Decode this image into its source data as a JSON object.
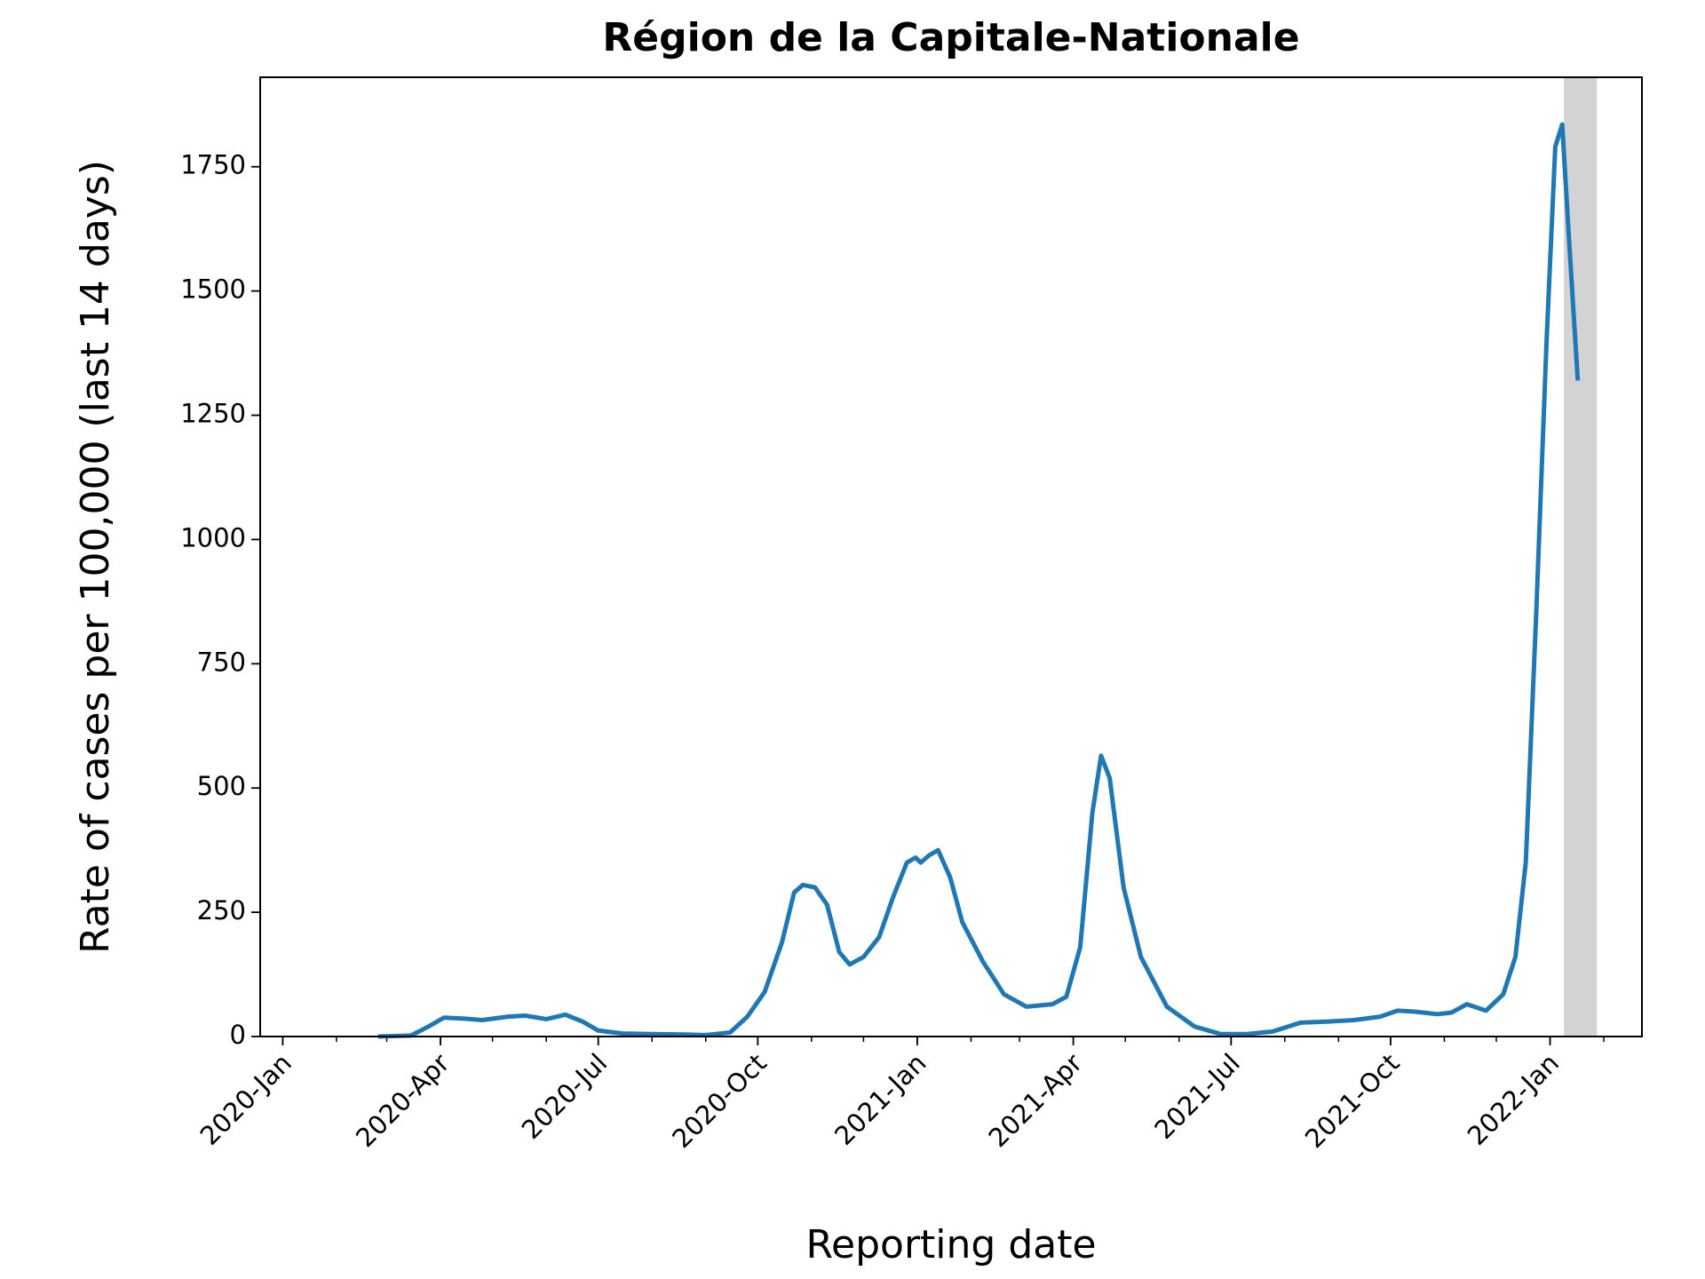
{
  "chart_data": {
    "type": "line",
    "title": "Région de la Capitale-Nationale",
    "xlabel": "Reporting date",
    "ylabel": "Rate of cases per 100,000 (last 14 days)",
    "x": [
      "2020-02-25",
      "2020-03-15",
      "2020-03-25",
      "2020-04-03",
      "2020-04-15",
      "2020-04-25",
      "2020-05-10",
      "2020-05-20",
      "2020-06-01",
      "2020-06-12",
      "2020-06-22",
      "2020-07-01",
      "2020-07-15",
      "2020-08-01",
      "2020-08-20",
      "2020-09-01",
      "2020-09-15",
      "2020-09-25",
      "2020-10-05",
      "2020-10-15",
      "2020-10-22",
      "2020-10-27",
      "2020-11-03",
      "2020-11-10",
      "2020-11-17",
      "2020-11-23",
      "2020-12-01",
      "2020-12-10",
      "2020-12-18",
      "2020-12-26",
      "2020-12-31",
      "2021-01-03",
      "2021-01-08",
      "2021-01-13",
      "2021-01-20",
      "2021-01-27",
      "2021-02-08",
      "2021-02-20",
      "2021-03-05",
      "2021-03-20",
      "2021-03-28",
      "2021-04-05",
      "2021-04-12",
      "2021-04-17",
      "2021-04-22",
      "2021-04-30",
      "2021-05-10",
      "2021-05-25",
      "2021-06-10",
      "2021-06-25",
      "2021-07-10",
      "2021-07-25",
      "2021-08-10",
      "2021-08-25",
      "2021-09-10",
      "2021-09-25",
      "2021-10-05",
      "2021-10-15",
      "2021-10-28",
      "2021-11-05",
      "2021-11-14",
      "2021-11-25",
      "2021-12-05",
      "2021-12-12",
      "2021-12-18",
      "2021-12-24",
      "2021-12-30",
      "2022-01-04",
      "2022-01-08",
      "2022-01-12",
      "2022-01-17"
    ],
    "series": [
      {
        "name": "Capitale-Nationale",
        "color": "#1f77b4",
        "values": [
          0,
          2,
          20,
          38,
          36,
          33,
          40,
          42,
          35,
          44,
          30,
          12,
          6,
          5,
          4,
          3,
          8,
          40,
          90,
          190,
          290,
          305,
          300,
          265,
          170,
          145,
          160,
          200,
          280,
          350,
          360,
          350,
          365,
          375,
          320,
          230,
          150,
          85,
          60,
          65,
          80,
          180,
          450,
          565,
          520,
          300,
          160,
          60,
          20,
          5,
          5,
          10,
          28,
          30,
          33,
          40,
          52,
          50,
          45,
          48,
          65,
          52,
          85,
          160,
          350,
          850,
          1400,
          1790,
          1835,
          1600,
          1320
        ]
      }
    ],
    "highlight": {
      "span": [
        "2022-01-09",
        "2022-01-28"
      ],
      "color": "#d3d3d3"
    },
    "xlim": [
      "2019-12-19",
      "2022-02-23"
    ],
    "xticks": [
      {
        "value": "2020-01-01",
        "label": "2020-Jan"
      },
      {
        "value": "2020-04-01",
        "label": "2020-Apr"
      },
      {
        "value": "2020-07-01",
        "label": "2020-Jul"
      },
      {
        "value": "2020-10-01",
        "label": "2020-Oct"
      },
      {
        "value": "2021-01-01",
        "label": "2021-Jan"
      },
      {
        "value": "2021-04-01",
        "label": "2021-Apr"
      },
      {
        "value": "2021-07-01",
        "label": "2021-Jul"
      },
      {
        "value": "2021-10-01",
        "label": "2021-Oct"
      },
      {
        "value": "2022-01-01",
        "label": "2022-Jan"
      }
    ],
    "ylim": [
      0,
      1930
    ],
    "yticks": [
      0,
      250,
      500,
      750,
      1000,
      1250,
      1500,
      1750
    ],
    "grid": false
  }
}
